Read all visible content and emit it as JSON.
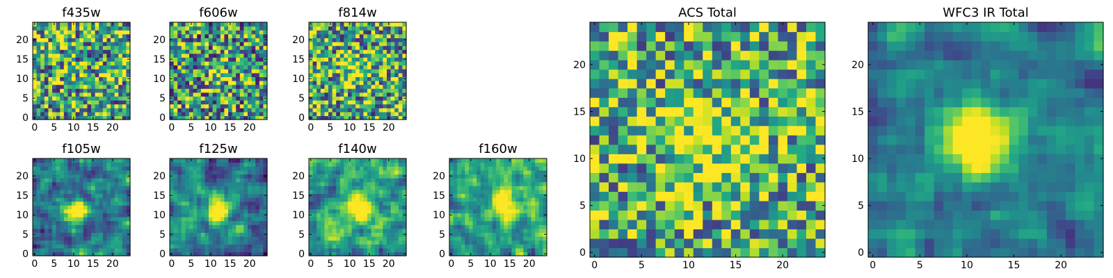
{
  "figure": {
    "colormap_name": "viridis",
    "background_color": "#ffffff"
  },
  "chart_data": [
    {
      "type": "heatmap",
      "title": "f435w",
      "grid_size": 25,
      "xlim": [
        0,
        24
      ],
      "ylim": [
        0,
        24
      ],
      "x_ticks": [
        0,
        5,
        10,
        15,
        20
      ],
      "y_ticks": [
        0,
        5,
        10,
        15,
        20
      ],
      "x_tick_labels": [
        "0",
        "5",
        "10",
        "15",
        "20"
      ],
      "y_tick_labels": [
        "0",
        "5",
        "10",
        "15",
        "20"
      ],
      "pattern": {
        "seed": 11,
        "noise": 1.0,
        "blob": 0.0,
        "blob_x": 12,
        "blob_y": 12,
        "blob_sigma": 3,
        "smooth": 0,
        "base": 0.6
      }
    },
    {
      "type": "heatmap",
      "title": "f606w",
      "grid_size": 25,
      "xlim": [
        0,
        24
      ],
      "ylim": [
        0,
        24
      ],
      "x_ticks": [
        0,
        5,
        10,
        15,
        20
      ],
      "y_ticks": [
        0,
        5,
        10,
        15,
        20
      ],
      "x_tick_labels": [
        "0",
        "5",
        "10",
        "15",
        "20"
      ],
      "y_tick_labels": [
        "0",
        "5",
        "10",
        "15",
        "20"
      ],
      "pattern": {
        "seed": 23,
        "noise": 1.0,
        "blob": 0.35,
        "blob_x": 12,
        "blob_y": 11,
        "blob_sigma": 2,
        "smooth": 0,
        "base": 0.55
      }
    },
    {
      "type": "heatmap",
      "title": "f814w",
      "grid_size": 25,
      "xlim": [
        0,
        24
      ],
      "ylim": [
        0,
        24
      ],
      "x_ticks": [
        0,
        5,
        10,
        15,
        20
      ],
      "y_ticks": [
        0,
        5,
        10,
        15,
        20
      ],
      "x_tick_labels": [
        "0",
        "5",
        "10",
        "15",
        "20"
      ],
      "y_tick_labels": [
        "0",
        "5",
        "10",
        "15",
        "20"
      ],
      "pattern": {
        "seed": 37,
        "noise": 1.0,
        "blob": 0.3,
        "blob_x": 12,
        "blob_y": 12,
        "blob_sigma": 2.5,
        "smooth": 0,
        "base": 0.6
      }
    },
    {
      "type": "heatmap",
      "title": "f105w",
      "grid_size": 25,
      "xlim": [
        0,
        24
      ],
      "ylim": [
        0,
        24
      ],
      "x_ticks": [
        0,
        5,
        10,
        15,
        20
      ],
      "y_ticks": [
        0,
        5,
        10,
        15,
        20
      ],
      "x_tick_labels": [
        "0",
        "5",
        "10",
        "15",
        "20"
      ],
      "y_tick_labels": [
        "0",
        "5",
        "10",
        "15",
        "20"
      ],
      "pattern": {
        "seed": 41,
        "noise": 0.8,
        "blob": 0.9,
        "blob_x": 11,
        "blob_y": 11,
        "blob_sigma": 2,
        "smooth": 1,
        "base": 0.45
      }
    },
    {
      "type": "heatmap",
      "title": "f125w",
      "grid_size": 25,
      "xlim": [
        0,
        24
      ],
      "ylim": [
        0,
        24
      ],
      "x_ticks": [
        0,
        5,
        10,
        15,
        20
      ],
      "y_ticks": [
        0,
        5,
        10,
        15,
        20
      ],
      "x_tick_labels": [
        "0",
        "5",
        "10",
        "15",
        "20"
      ],
      "y_tick_labels": [
        "0",
        "5",
        "10",
        "15",
        "20"
      ],
      "pattern": {
        "seed": 53,
        "noise": 0.8,
        "blob": 0.9,
        "blob_x": 12,
        "blob_y": 11,
        "blob_sigma": 2,
        "smooth": 1,
        "base": 0.4
      }
    },
    {
      "type": "heatmap",
      "title": "f140w",
      "grid_size": 25,
      "xlim": [
        0,
        24
      ],
      "ylim": [
        0,
        24
      ],
      "x_ticks": [
        0,
        5,
        10,
        15,
        20
      ],
      "y_ticks": [
        0,
        5,
        10,
        15,
        20
      ],
      "x_tick_labels": [
        "0",
        "5",
        "10",
        "15",
        "20"
      ],
      "y_tick_labels": [
        "0",
        "5",
        "10",
        "15",
        "20"
      ],
      "pattern": {
        "seed": 67,
        "noise": 0.8,
        "blob": 0.7,
        "blob_x": 12,
        "blob_y": 12,
        "blob_sigma": 2.5,
        "smooth": 1,
        "base": 0.55
      }
    },
    {
      "type": "heatmap",
      "title": "f160w",
      "grid_size": 25,
      "xlim": [
        0,
        24
      ],
      "ylim": [
        0,
        24
      ],
      "x_ticks": [
        0,
        5,
        10,
        15,
        20
      ],
      "y_ticks": [
        0,
        5,
        10,
        15,
        20
      ],
      "x_tick_labels": [
        "0",
        "5",
        "10",
        "15",
        "20"
      ],
      "y_tick_labels": [
        "0",
        "5",
        "10",
        "15",
        "20"
      ],
      "pattern": {
        "seed": 79,
        "noise": 0.8,
        "blob": 0.7,
        "blob_x": 14,
        "blob_y": 13,
        "blob_sigma": 2.5,
        "smooth": 1,
        "base": 0.55
      }
    },
    {
      "type": "heatmap",
      "title": "ACS Total",
      "grid_size": 25,
      "xlim": [
        0,
        24
      ],
      "ylim": [
        0,
        24
      ],
      "x_ticks": [
        0,
        5,
        10,
        15,
        20
      ],
      "y_ticks": [
        0,
        5,
        10,
        15,
        20
      ],
      "x_tick_labels": [
        "0",
        "5",
        "10",
        "15",
        "20"
      ],
      "y_tick_labels": [
        "0",
        "5",
        "10",
        "15",
        "20"
      ],
      "pattern": {
        "seed": 97,
        "noise": 0.9,
        "blob": 0.35,
        "blob_x": 12,
        "blob_y": 12,
        "blob_sigma": 3,
        "smooth": 0,
        "base": 0.62
      }
    },
    {
      "type": "heatmap",
      "title": "WFC3 IR Total",
      "grid_size": 25,
      "xlim": [
        0,
        24
      ],
      "ylim": [
        0,
        24
      ],
      "x_ticks": [
        0,
        5,
        10,
        15,
        20
      ],
      "y_ticks": [
        0,
        5,
        10,
        15,
        20
      ],
      "x_tick_labels": [
        "0",
        "5",
        "10",
        "15",
        "20"
      ],
      "y_tick_labels": [
        "0",
        "5",
        "10",
        "15",
        "20"
      ],
      "pattern": {
        "seed": 113,
        "noise": 0.6,
        "blob": 0.9,
        "blob_x": 11,
        "blob_y": 12,
        "blob_sigma": 2.5,
        "smooth": 1,
        "base": 0.45
      }
    }
  ]
}
